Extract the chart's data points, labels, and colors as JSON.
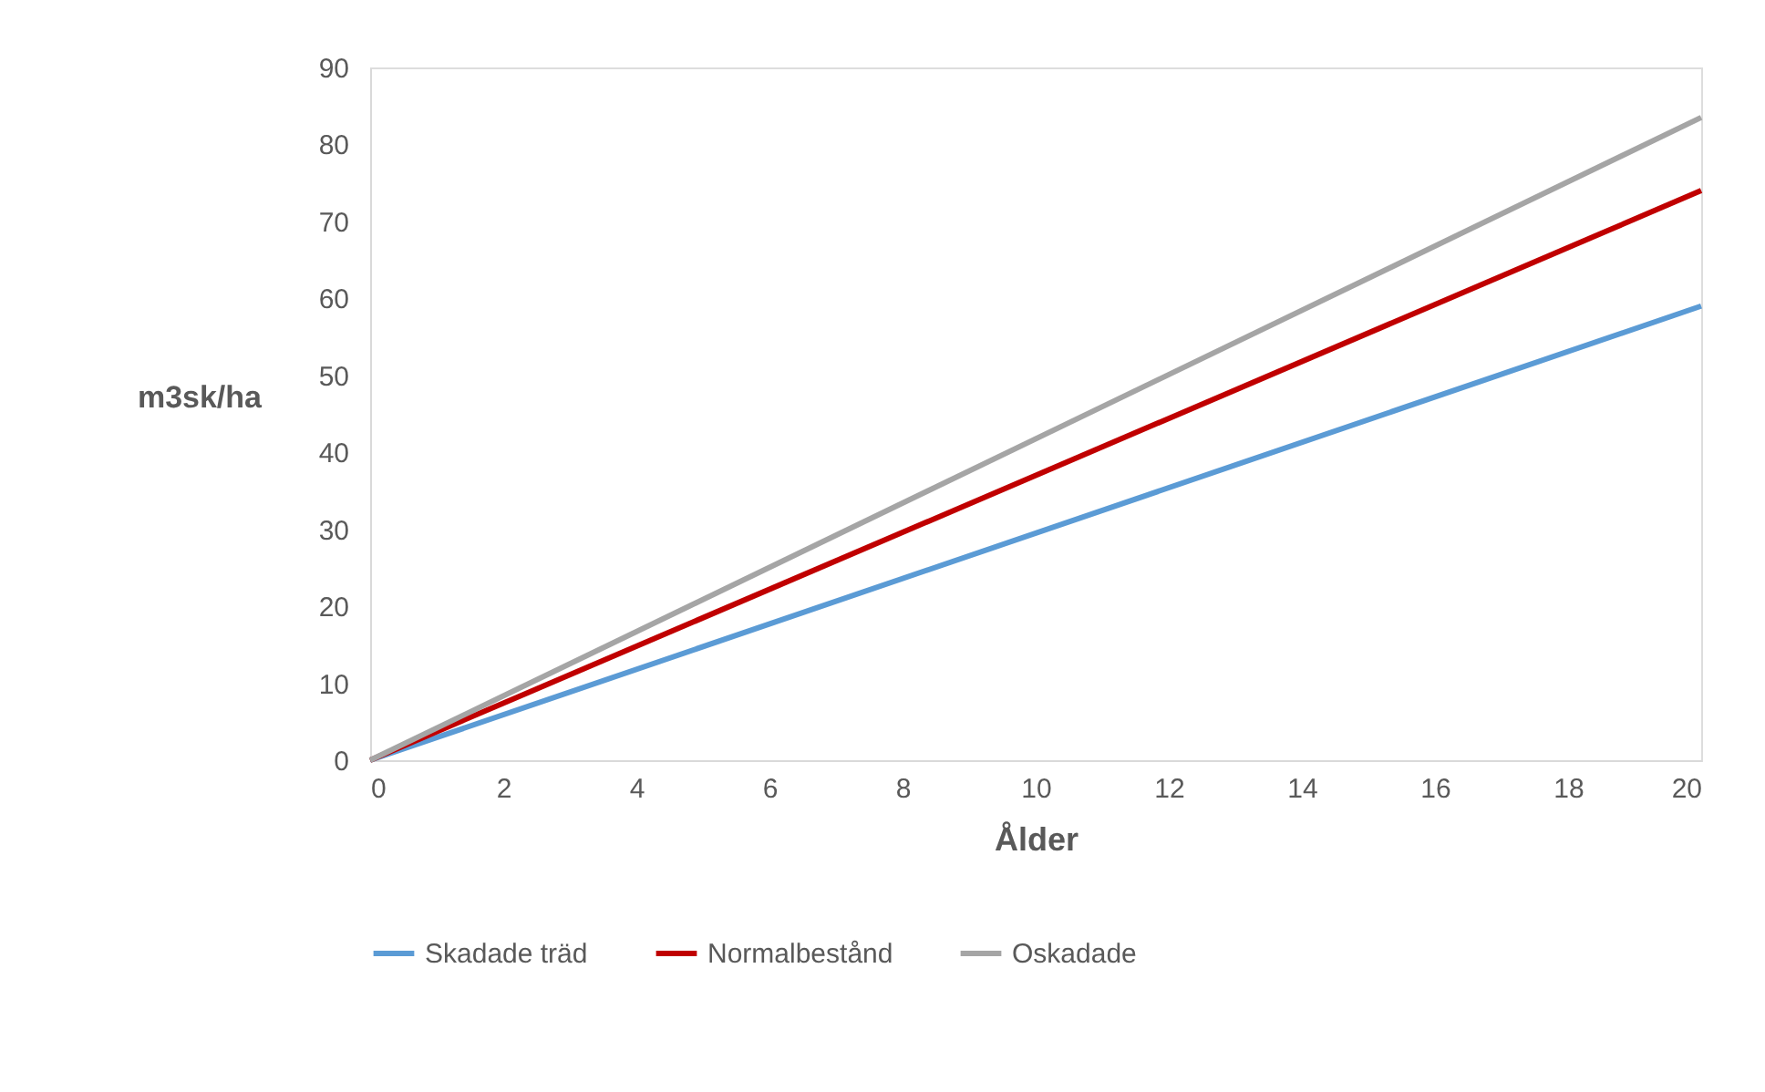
{
  "chart_data": {
    "type": "line",
    "xlabel": "Ålder",
    "ylabel": "m3sk/ha",
    "x": [
      0,
      20
    ],
    "series": [
      {
        "name": "Skadade träd",
        "color": "#5b9bd5",
        "values": [
          0,
          59
        ]
      },
      {
        "name": "Normalbestånd",
        "color": "#c00000",
        "values": [
          0,
          74
        ]
      },
      {
        "name": "Oskadade",
        "color": "#a5a5a5",
        "values": [
          0,
          83.5
        ]
      }
    ],
    "xlim": [
      0,
      20
    ],
    "xticks": [
      0,
      2,
      4,
      6,
      8,
      10,
      12,
      14,
      16,
      18,
      20
    ],
    "ylim": [
      0,
      90
    ],
    "yticks": [
      0,
      10,
      20,
      30,
      40,
      50,
      60,
      70,
      80,
      90
    ],
    "grid": false,
    "legend": "bottom",
    "marker": "none",
    "line_style": "solid"
  }
}
